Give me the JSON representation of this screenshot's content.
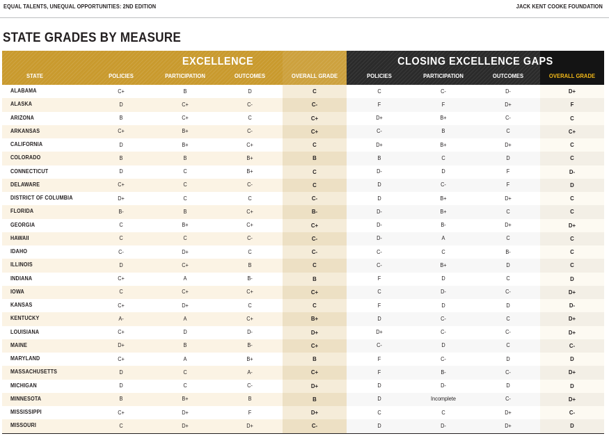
{
  "header": {
    "left_text": "EQUAL TALENTS, UNEQUAL OPPORTUNITIES: 2ND EDITION",
    "right_text": "JACK KENT COOKE FOUNDATION"
  },
  "page_title": "STATE GRADES BY MEASURE",
  "colors": {
    "excellence_band": "#c99a2e",
    "gaps_band": "#2b2b2b",
    "accent_heading": "#f2b817",
    "row_alt_left": "#fbf3e4",
    "row_alt_right": "#f7f7f7"
  },
  "bands": {
    "excellence": "EXCELLENCE",
    "gaps": "CLOSING EXCELLENCE GAPS"
  },
  "columns": {
    "state": "STATE",
    "excellence": [
      "POLICIES",
      "PARTICIPATION",
      "OUTCOMES",
      "OVERALL GRADE"
    ],
    "gaps": [
      "POLICIES",
      "PARTICIPATION",
      "OUTCOMES",
      "OVERALL GRADE"
    ]
  },
  "rows": [
    {
      "state": "ALABAMA",
      "ex": [
        "C+",
        "B",
        "D",
        "C"
      ],
      "gap": [
        "C",
        "C-",
        "D-",
        "D+"
      ]
    },
    {
      "state": "ALASKA",
      "ex": [
        "D",
        "C+",
        "C-",
        "C-"
      ],
      "gap": [
        "F",
        "F",
        "D+",
        "F"
      ]
    },
    {
      "state": "ARIZONA",
      "ex": [
        "B",
        "C+",
        "C",
        "C+"
      ],
      "gap": [
        "D+",
        "B+",
        "C-",
        "C"
      ]
    },
    {
      "state": "ARKANSAS",
      "ex": [
        "C+",
        "B+",
        "C-",
        "C+"
      ],
      "gap": [
        "C-",
        "B",
        "C",
        "C+"
      ]
    },
    {
      "state": "CALIFORNIA",
      "ex": [
        "D",
        "B+",
        "C+",
        "C"
      ],
      "gap": [
        "D+",
        "B+",
        "D+",
        "C"
      ]
    },
    {
      "state": "COLORADO",
      "ex": [
        "B",
        "B",
        "B+",
        "B"
      ],
      "gap": [
        "B",
        "C",
        "D",
        "C"
      ]
    },
    {
      "state": "CONNECTICUT",
      "ex": [
        "D",
        "C",
        "B+",
        "C"
      ],
      "gap": [
        "D-",
        "D",
        "F",
        "D-"
      ]
    },
    {
      "state": "DELAWARE",
      "ex": [
        "C+",
        "C",
        "C-",
        "C"
      ],
      "gap": [
        "D",
        "C-",
        "F",
        "D"
      ]
    },
    {
      "state": "DISTRICT OF COLUMBIA",
      "ex": [
        "D+",
        "C",
        "C",
        "C-"
      ],
      "gap": [
        "D",
        "B+",
        "D+",
        "C"
      ]
    },
    {
      "state": "FLORIDA",
      "ex": [
        "B-",
        "B",
        "C+",
        "B-"
      ],
      "gap": [
        "D-",
        "B+",
        "C",
        "C"
      ]
    },
    {
      "state": "GEORGIA",
      "ex": [
        "C",
        "B+",
        "C+",
        "C+"
      ],
      "gap": [
        "D-",
        "B-",
        "D+",
        "D+"
      ]
    },
    {
      "state": "HAWAII",
      "ex": [
        "C",
        "C",
        "C-",
        "C-"
      ],
      "gap": [
        "D-",
        "A",
        "C",
        "C"
      ]
    },
    {
      "state": "IDAHO",
      "ex": [
        "C-",
        "D+",
        "C",
        "C-"
      ],
      "gap": [
        "C-",
        "C",
        "B-",
        "C"
      ]
    },
    {
      "state": "ILLINOIS",
      "ex": [
        "D",
        "C+",
        "B",
        "C"
      ],
      "gap": [
        "C-",
        "B+",
        "D",
        "C"
      ]
    },
    {
      "state": "INDIANA",
      "ex": [
        "C+",
        "A",
        "B-",
        "B"
      ],
      "gap": [
        "F",
        "D",
        "C",
        "D"
      ]
    },
    {
      "state": "IOWA",
      "ex": [
        "C",
        "C+",
        "C+",
        "C+"
      ],
      "gap": [
        "C",
        "D-",
        "C-",
        "D+"
      ]
    },
    {
      "state": "KANSAS",
      "ex": [
        "C+",
        "D+",
        "C",
        "C"
      ],
      "gap": [
        "F",
        "D",
        "D",
        "D-"
      ]
    },
    {
      "state": "KENTUCKY",
      "ex": [
        "A-",
        "A",
        "C+",
        "B+"
      ],
      "gap": [
        "D",
        "C-",
        "C",
        "D+"
      ]
    },
    {
      "state": "LOUISIANA",
      "ex": [
        "C+",
        "D",
        "D-",
        "D+"
      ],
      "gap": [
        "D+",
        "C-",
        "C-",
        "D+"
      ]
    },
    {
      "state": "MAINE",
      "ex": [
        "D+",
        "B",
        "B-",
        "C+"
      ],
      "gap": [
        "C-",
        "D",
        "C",
        "C-"
      ]
    },
    {
      "state": "MARYLAND",
      "ex": [
        "C+",
        "A",
        "B+",
        "B"
      ],
      "gap": [
        "F",
        "C-",
        "D",
        "D"
      ]
    },
    {
      "state": "MASSACHUSETTS",
      "ex": [
        "D",
        "C",
        "A-",
        "C+"
      ],
      "gap": [
        "F",
        "B-",
        "C-",
        "D+"
      ]
    },
    {
      "state": "MICHIGAN",
      "ex": [
        "D",
        "C",
        "C-",
        "D+"
      ],
      "gap": [
        "D",
        "D-",
        "D",
        "D"
      ]
    },
    {
      "state": "MINNESOTA",
      "ex": [
        "B",
        "B+",
        "B",
        "B"
      ],
      "gap": [
        "D",
        "Incomplete",
        "C-",
        "D+"
      ]
    },
    {
      "state": "MISSISSIPPI",
      "ex": [
        "C+",
        "D+",
        "F",
        "D+"
      ],
      "gap": [
        "C",
        "C",
        "D+",
        "C-"
      ]
    },
    {
      "state": "MISSOURI",
      "ex": [
        "C",
        "D+",
        "D+",
        "C-"
      ],
      "gap": [
        "D",
        "D-",
        "D+",
        "D"
      ]
    }
  ]
}
